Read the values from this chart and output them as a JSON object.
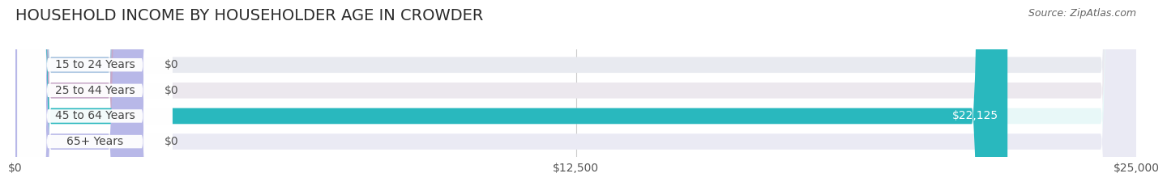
{
  "title": "HOUSEHOLD INCOME BY HOUSEHOLDER AGE IN CROWDER",
  "source": "Source: ZipAtlas.com",
  "categories": [
    "15 to 24 Years",
    "25 to 44 Years",
    "45 to 64 Years",
    "65+ Years"
  ],
  "values": [
    0,
    0,
    22125,
    0
  ],
  "xlim": [
    0,
    25000
  ],
  "xticks": [
    0,
    12500,
    25000
  ],
  "xticklabels": [
    "$0",
    "$12,500",
    "$25,000"
  ],
  "bar_colors": [
    "#a8c4e0",
    "#c8a8c8",
    "#29b8be",
    "#b8b8e8"
  ],
  "bar_bg_colors": [
    "#e8eaf0",
    "#ece8ee",
    "#e8f8f8",
    "#eaeaf4"
  ],
  "label_color": "#444444",
  "value_color_inside": "#ffffff",
  "value_color_outside": "#555555",
  "title_fontsize": 14,
  "source_fontsize": 9,
  "tick_fontsize": 10,
  "bar_label_fontsize": 10,
  "bar_height": 0.62,
  "background_color": "#ffffff",
  "bar_gap": 0.38
}
